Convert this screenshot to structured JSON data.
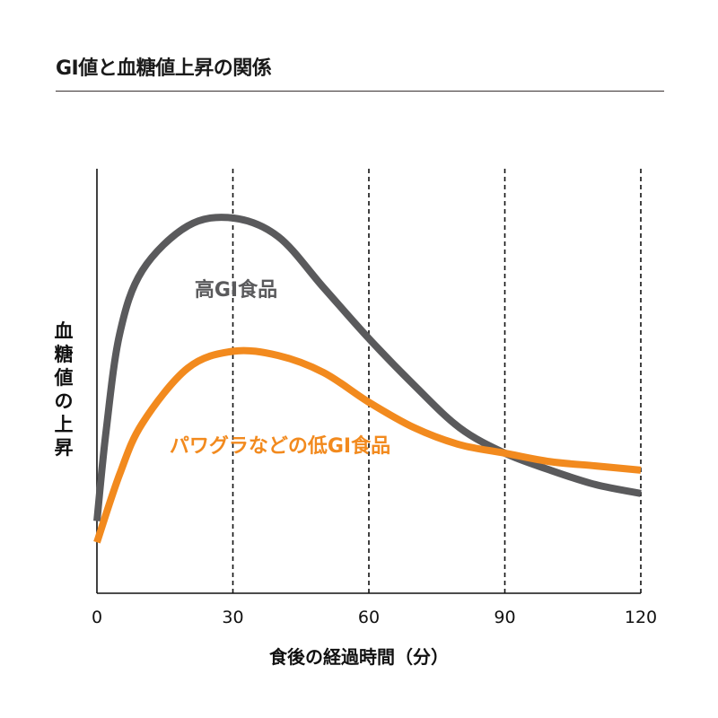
{
  "chart_data": {
    "type": "line",
    "title": "GI値と血糖値上昇の関係",
    "xlabel": "食後の経過時間（分）",
    "ylabel": "血糖値の上昇",
    "xlim": [
      0,
      120
    ],
    "ylim": [
      0,
      100
    ],
    "xticks": [
      "0",
      "30",
      "60",
      "90",
      "120"
    ],
    "grid": "vertical dashed at 30, 60, 90, 120",
    "series": [
      {
        "name": "高GI食品",
        "color": "#5a5a5c",
        "x": [
          0,
          2,
          5,
          10,
          20,
          30,
          40,
          50,
          60,
          70,
          80,
          90,
          100,
          110,
          120
        ],
        "y": [
          17,
          38,
          61,
          76,
          86.5,
          88.4,
          84,
          72,
          60,
          49,
          39,
          33,
          29,
          25.6,
          23.5
        ]
      },
      {
        "name": "パワグラなどの低GI食品",
        "color": "#f28a1e",
        "x": [
          0,
          5,
          10,
          20,
          30,
          40,
          50,
          60,
          70,
          80,
          90,
          100,
          110,
          120
        ],
        "y": [
          12,
          28,
          40,
          53,
          57,
          56,
          52,
          45,
          39,
          35,
          33,
          31,
          30,
          29
        ]
      }
    ]
  }
}
